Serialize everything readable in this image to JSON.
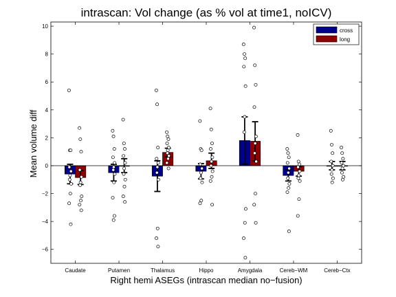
{
  "chart_data": {
    "type": "bar",
    "title": "intrascan: Vol change (as % vol at time1, noICV)",
    "xlabel": "Right hemi ASEGs (intrascan median no−fusion)",
    "ylabel": "Mean volume diff",
    "ylim": [
      -7,
      10.3
    ],
    "yticks": [
      -6,
      -4,
      -2,
      0,
      2,
      4,
      6,
      8,
      10
    ],
    "categories": [
      "Caudate",
      "Putamen",
      "Thalamus",
      "Hippo",
      "Amygdala",
      "Cereb−WM",
      "Cereb−Ctx"
    ],
    "legend_position": "top-right",
    "grid": false,
    "colors": {
      "cross": "#00008f",
      "long": "#8f0000"
    },
    "series": [
      {
        "name": "cross",
        "values": [
          -0.6,
          -0.5,
          -0.75,
          -0.4,
          1.8,
          -0.7,
          0.0
        ],
        "errors": [
          0.7,
          0.6,
          1.1,
          0.55,
          1.7,
          0.4,
          0.3
        ],
        "points": [
          [
            5.4,
            1.1,
            1.1,
            -0.1,
            -0.4,
            -0.7,
            -1.0,
            -1.3,
            -2.0,
            -2.7,
            -4.2
          ],
          [
            2.5,
            2.1,
            1.2,
            0.6,
            0.2,
            -0.1,
            -0.3,
            -0.6,
            -1.2,
            -2.3,
            -3.6,
            -3.9
          ],
          [
            5.4,
            4.4,
            1.3,
            0.5,
            0.2,
            -0.1,
            -0.5,
            -1.0,
            -4.5,
            -5.2,
            -5.8
          ],
          [
            3.2,
            1.2,
            1.1,
            0.1,
            -0.2,
            -0.5,
            -0.9,
            -1.2,
            -2.5,
            -2.7
          ],
          [
            8.7,
            8.0,
            7.7,
            7.1,
            5.7,
            3.5,
            2.4,
            -3.1,
            -4.1,
            -5.2,
            -6.6
          ],
          [
            1.2,
            0.9,
            0.6,
            0.2,
            -0.2,
            -0.5,
            -0.9,
            -1.3,
            -1.6,
            -1.9,
            -4.7
          ],
          [
            2.5,
            1.5,
            0.9,
            0.3,
            0.0,
            -0.3,
            -0.6,
            -0.9,
            -1.2
          ]
        ]
      },
      {
        "name": "long",
        "values": [
          -0.85,
          0.0,
          0.95,
          0.35,
          1.75,
          -0.4,
          0.0
        ],
        "errors": [
          0.5,
          0.5,
          0.3,
          0.55,
          1.4,
          0.35,
          0.3
        ],
        "points": [
          [
            2.7,
            1.9,
            1.0,
            -0.3,
            -0.8,
            -1.2,
            -1.4,
            -2.2,
            -2.5,
            -2.8,
            -3.2
          ],
          [
            3.3,
            1.6,
            1.2,
            0.7,
            0.2,
            -0.2,
            -0.6,
            -1.0,
            -1.5,
            -2.2,
            -2.6
          ],
          [
            2.4,
            2.1,
            1.9,
            1.6,
            1.3,
            1.1,
            0.9,
            0.7,
            0.5,
            0.2,
            -0.2
          ],
          [
            4.1,
            2.6,
            1.6,
            1.2,
            0.6,
            0.3,
            0.0,
            -0.4,
            -0.8,
            -1.1,
            -2.8
          ],
          [
            9.9,
            7.2,
            5.8,
            4.2,
            2.1,
            1.6,
            0.9,
            0.3,
            -2.0,
            -2.8,
            -4.1
          ],
          [
            2.2,
            0.3,
            0.1,
            -0.1,
            -0.4,
            -0.7,
            -0.9,
            -1.1,
            -2.4,
            -3.6
          ],
          [
            1.3,
            0.9,
            0.5,
            0.2,
            0.0,
            -0.2,
            -0.5,
            -0.8,
            -1.0
          ]
        ]
      }
    ]
  }
}
